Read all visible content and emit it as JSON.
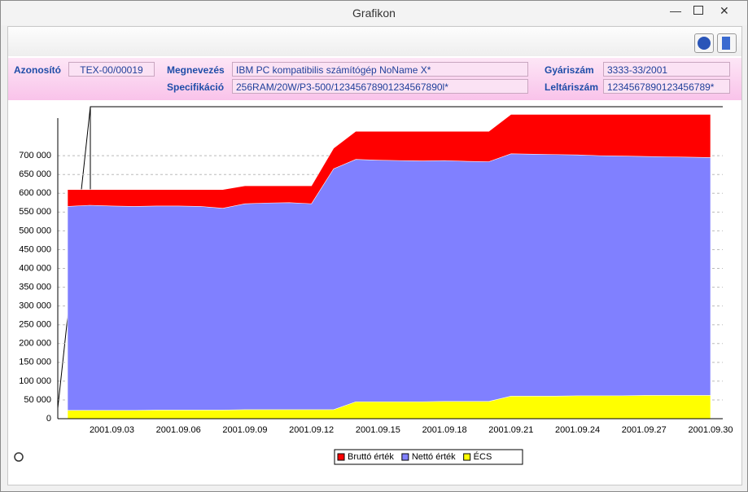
{
  "header": {
    "title": "Grafikon"
  },
  "fields": [
    {
      "label": "Azonosító",
      "value": "TEX-00/00019"
    },
    {
      "label": "Megnevezés",
      "value": "IBM PC kompatibilis számítógép NoName X*"
    },
    {
      "label": "Gyáriszám",
      "value": "3333-33/2001"
    },
    {
      "label": "Specifikáció",
      "value": "256RAM/20W/P3-500/12345678901234567890l*"
    },
    {
      "label": "Leltáriszám",
      "value": "1234567890123456789*"
    }
  ],
  "chart_data": {
    "type": "area",
    "categories": [
      null,
      null,
      "2001.09.03",
      null,
      null,
      "2001.09.06",
      null,
      null,
      "2001.09.09",
      null,
      null,
      "2001.09.12",
      null,
      null,
      "2001.09.15",
      null,
      null,
      "2001.09.18",
      null,
      null,
      "2001.09.21",
      null,
      null,
      "2001.09.24",
      null,
      null,
      "2001.09.27",
      null,
      null,
      "2001.09.30"
    ],
    "series": [
      {
        "name": "Bruttó érték",
        "color": "#ff0000",
        "values": [
          610000,
          610000,
          610000,
          610000,
          610000,
          610000,
          610000,
          610000,
          620000,
          620000,
          620000,
          620000,
          720000,
          765000,
          765000,
          765000,
          765000,
          765000,
          765000,
          765000,
          810000,
          810000,
          810000,
          810000,
          810000,
          810000,
          810000,
          810000,
          810000,
          810000
        ]
      },
      {
        "name": "Nettó érték",
        "color": "#8080ff",
        "values": [
          565000,
          568000,
          566000,
          565000,
          566000,
          566000,
          565000,
          560000,
          572000,
          574000,
          575000,
          572000,
          665000,
          690000,
          688000,
          687000,
          686000,
          687000,
          685000,
          684000,
          705000,
          704000,
          703000,
          702000,
          700000,
          699000,
          698000,
          697000,
          696000,
          695000
        ]
      },
      {
        "name": "ÉCS",
        "color": "#ffff00",
        "values": [
          22000,
          22000,
          22000,
          22000,
          23000,
          23000,
          23000,
          23000,
          24000,
          24000,
          24000,
          24000,
          24000,
          45000,
          45000,
          45000,
          45000,
          46000,
          46000,
          46000,
          60000,
          60000,
          60000,
          61000,
          61000,
          61000,
          62000,
          62000,
          62000,
          62000
        ]
      }
    ],
    "ylim": [
      0,
      800000
    ],
    "yticks": [
      {
        "value": 0,
        "label": "0"
      },
      {
        "value": 50000,
        "label": "50 000"
      },
      {
        "value": 100000,
        "label": "100 000"
      },
      {
        "value": 150000,
        "label": "150 000"
      },
      {
        "value": 200000,
        "label": "200 000"
      },
      {
        "value": 250000,
        "label": "250 000"
      },
      {
        "value": 300000,
        "label": "300 000"
      },
      {
        "value": 350000,
        "label": "350 000"
      },
      {
        "value": 400000,
        "label": "400 000"
      },
      {
        "value": 450000,
        "label": "450 000"
      },
      {
        "value": 500000,
        "label": "500 000"
      },
      {
        "value": 550000,
        "label": "550 000"
      },
      {
        "value": 600000,
        "label": "600 000"
      },
      {
        "value": 650000,
        "label": "650 000"
      },
      {
        "value": 700000,
        "label": "700 000"
      }
    ],
    "grid": true
  }
}
